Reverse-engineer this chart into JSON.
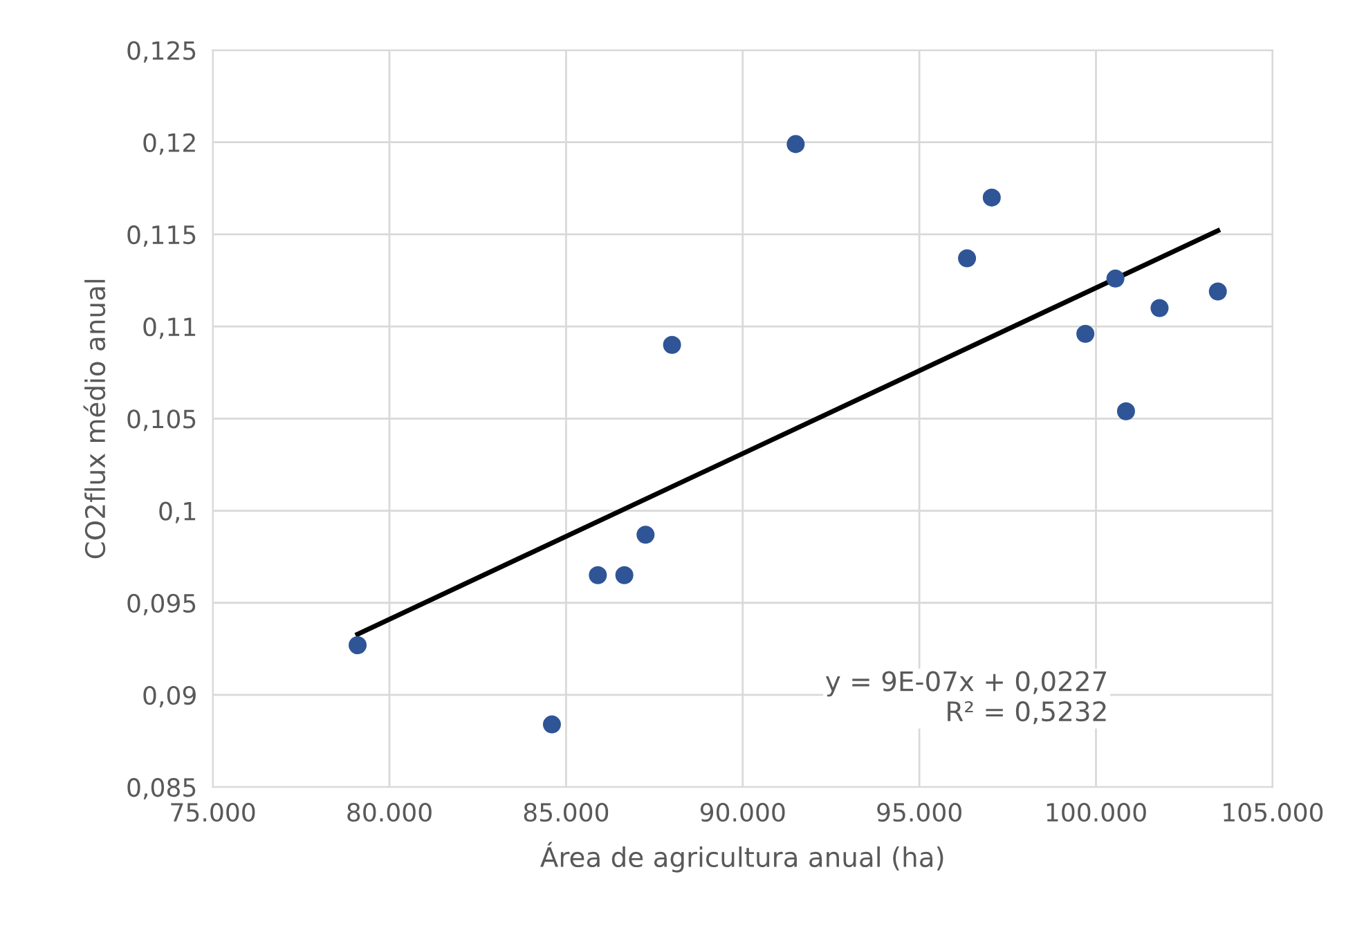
{
  "chart_data": {
    "type": "scatter",
    "xlabel": "Área de agricultura anual (ha)",
    "ylabel": "CO2flux médio anual",
    "series": [
      {
        "color": "#2f5597",
        "marker": "circle",
        "x": [
          79100,
          84600,
          85900,
          86650,
          87250,
          88000,
          91500,
          96350,
          97050,
          99700,
          100550,
          100850,
          101800,
          103450
        ],
        "values": [
          0.0927,
          0.0884,
          0.0965,
          0.0965,
          0.0987,
          0.109,
          0.1199,
          0.1137,
          0.117,
          0.1096,
          0.1126,
          0.1054,
          0.111,
          0.1119
        ]
      },
      {
        "type": "line",
        "color": "#000000",
        "marker": "none",
        "x": [
          79100,
          103450
        ],
        "values": [
          0.0933,
          0.1152
        ]
      }
    ],
    "annotations": [
      "y = 9E-07x + 0,0227\nR² = 0,5232"
    ],
    "xlim": [
      75000,
      105000
    ],
    "xticks": [
      {
        "value": 75000,
        "label": "75.000"
      },
      {
        "value": 80000,
        "label": "80.000"
      },
      {
        "value": 85000,
        "label": "85.000"
      },
      {
        "value": 90000,
        "label": "90.000"
      },
      {
        "value": 95000,
        "label": "95.000"
      },
      {
        "value": 100000,
        "label": "100.000"
      },
      {
        "value": 105000,
        "label": "105.000"
      }
    ],
    "ylim": [
      0.085,
      0.125
    ],
    "yticks": [
      {
        "value": 0.085,
        "label": "0,085"
      },
      {
        "value": 0.09,
        "label": "0,09"
      },
      {
        "value": 0.095,
        "label": "0,095"
      },
      {
        "value": 0.1,
        "label": "0,1"
      },
      {
        "value": 0.105,
        "label": "0,105"
      },
      {
        "value": 0.11,
        "label": "0,11"
      },
      {
        "value": 0.115,
        "label": "0,115"
      },
      {
        "value": 0.12,
        "label": "0,12"
      },
      {
        "value": 0.125,
        "label": "0,125"
      }
    ],
    "grid": true,
    "legend": false
  }
}
